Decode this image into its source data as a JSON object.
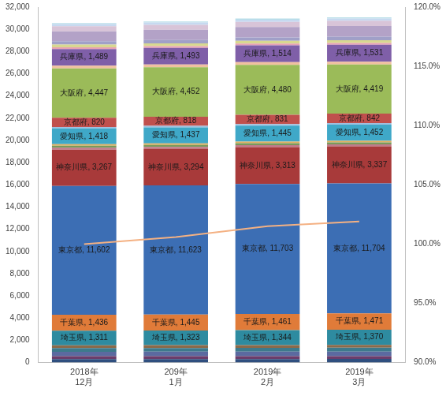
{
  "chart_data": {
    "type": "bar",
    "stacked": true,
    "grid": false,
    "categories": [
      [
        "2018年",
        "12月"
      ],
      [
        "209年",
        "1月"
      ],
      [
        "2019年",
        "2月"
      ],
      [
        "2019年",
        "3月"
      ]
    ],
    "ylim": [
      0,
      32000
    ],
    "yticks": [
      0,
      {
        "value": 2000,
        "label": "2,000"
      },
      {
        "value": 4000,
        "label": "4,000"
      },
      {
        "value": 6000,
        "label": "6,000"
      },
      {
        "value": 8000,
        "label": "8,000"
      },
      {
        "value": 10000,
        "label": "10,000"
      },
      {
        "value": 12000,
        "label": "12,000"
      },
      {
        "value": 14000,
        "label": "14,000"
      },
      {
        "value": 16000,
        "label": "16,000"
      },
      {
        "value": 18000,
        "label": "18,000"
      },
      {
        "value": 20000,
        "label": "20,000"
      },
      {
        "value": 22000,
        "label": "22,000"
      },
      {
        "value": 24000,
        "label": "24,000"
      },
      {
        "value": 26000,
        "label": "26,000"
      },
      {
        "value": 28000,
        "label": "28,000"
      },
      {
        "value": 30000,
        "label": "30,000"
      },
      {
        "value": 32000,
        "label": "32,000"
      }
    ],
    "y2lim": [
      90,
      120
    ],
    "y2ticks": [
      {
        "value": 90,
        "label": "90.0%"
      },
      {
        "value": 95,
        "label": "95.0%"
      },
      {
        "value": 100,
        "label": "100.0%"
      },
      {
        "value": 105,
        "label": "105.0%"
      },
      {
        "value": 110,
        "label": "110.0%"
      },
      {
        "value": 115,
        "label": "115.0%"
      },
      {
        "value": 120,
        "label": "120.0%"
      }
    ],
    "series": [
      {
        "color": "#2f4f7f",
        "values": [
          310,
          312,
          315,
          318
        ]
      },
      {
        "color": "#6b3d6b",
        "values": [
          260,
          262,
          264,
          266
        ]
      },
      {
        "color": "#5b6aa0",
        "values": [
          400,
          402,
          405,
          408
        ]
      },
      {
        "color": "#3d7a8c",
        "values": [
          330,
          333,
          336,
          339
        ]
      },
      {
        "color": "#8b6a4a",
        "values": [
          250,
          252,
          254,
          256
        ]
      },
      {
        "name": "埼玉県",
        "color": "#2e8ba0",
        "data_labels": true,
        "values": [
          1311,
          1323,
          1344,
          1370
        ],
        "value_labels": [
          "埼玉県, 1,311",
          "埼玉県, 1,323",
          "埼玉県, 1,344",
          "埼玉県, 1,370"
        ]
      },
      {
        "name": "千葉県",
        "color": "#e07b39",
        "data_labels": true,
        "values": [
          1436,
          1445,
          1461,
          1471
        ],
        "value_labels": [
          "千葉県, 1,436",
          "千葉県, 1,445",
          "千葉県, 1,461",
          "千葉県, 1,471"
        ]
      },
      {
        "name": "東京都",
        "color": "#3c6eb4",
        "data_labels": true,
        "values": [
          11602,
          11623,
          11703,
          11704
        ],
        "value_labels": [
          "東京都, 11,602",
          "東京都, 11,623",
          "東京都, 11,703",
          "東京都, 11,704"
        ]
      },
      {
        "name": "神奈川県",
        "color": "#a83a3a",
        "data_labels": true,
        "values": [
          3267,
          3294,
          3313,
          3337
        ],
        "value_labels": [
          "神奈川県, 3,267",
          "神奈川県, 3,294",
          "神奈川県, 3,313",
          "神奈川県, 3,337"
        ]
      },
      {
        "color": "#c07a8a",
        "values": [
          170,
          171,
          172,
          173
        ]
      },
      {
        "color": "#7a9a5a",
        "values": [
          180,
          181,
          183,
          184
        ]
      },
      {
        "color": "#e0b060",
        "values": [
          140,
          141,
          142,
          143
        ]
      },
      {
        "name": "愛知県",
        "color": "#3fa8c8",
        "data_labels": true,
        "values": [
          1418,
          1437,
          1445,
          1452
        ],
        "value_labels": [
          "愛知県, 1,418",
          "愛知県, 1,437",
          "愛知県, 1,445",
          "愛知県, 1,452"
        ]
      },
      {
        "color": "#a0c0e0",
        "values": [
          140,
          141,
          142,
          143
        ]
      },
      {
        "name": "京都府",
        "color": "#c0504d",
        "data_labels": true,
        "values": [
          820,
          818,
          831,
          842
        ],
        "value_labels": [
          "京都府, 820",
          "京都府, 818",
          "京都府, 831",
          "京都府, 842"
        ]
      },
      {
        "name": "大阪府",
        "color": "#9bbb59",
        "data_labels": true,
        "values": [
          4447,
          4452,
          4480,
          4419
        ],
        "value_labels": [
          "大阪府, 4,447",
          "大阪府, 4,452",
          "大阪府, 4,480",
          "大阪府, 4,419"
        ]
      },
      {
        "color": "#f0c0a0",
        "values": [
          250,
          252,
          254,
          256
        ]
      },
      {
        "name": "兵庫県",
        "color": "#7f5fa8",
        "data_labels": true,
        "values": [
          1489,
          1493,
          1514,
          1531
        ],
        "value_labels": [
          "兵庫県, 1,489",
          "兵庫県, 1,493",
          "兵庫県, 1,514",
          "兵庫県, 1,531"
        ]
      },
      {
        "color": "#e6a0b4",
        "values": [
          150,
          151,
          153,
          155
        ]
      },
      {
        "color": "#d8d890",
        "values": [
          250,
          252,
          255,
          258
        ]
      },
      {
        "color": "#a0a0c8",
        "values": [
          300,
          302,
          306,
          310
        ]
      },
      {
        "color": "#b3a2c7",
        "values": [
          900,
          915,
          930,
          960
        ]
      },
      {
        "color": "#d8c4d8",
        "values": [
          450,
          455,
          465,
          475
        ]
      },
      {
        "color": "#c6d9f0",
        "values": [
          200,
          202,
          205,
          208
        ]
      },
      {
        "color": "#b7dee8",
        "values": [
          100,
          101,
          102,
          103
        ]
      },
      {
        "type": "line",
        "axis": "y2",
        "color": "#f4b183",
        "marker": "none",
        "line_style": "solid",
        "values": [
          100.0,
          100.6,
          101.5,
          101.9
        ]
      }
    ]
  }
}
